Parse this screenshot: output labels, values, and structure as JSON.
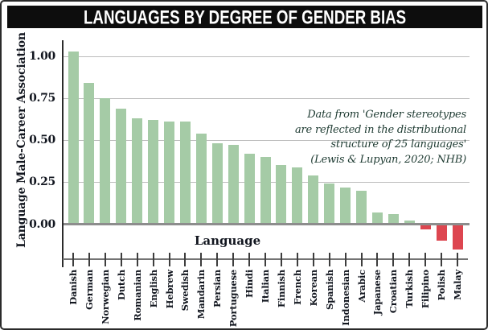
{
  "title": "LANGUAGES BY DEGREE OF GENDER BIAS",
  "annotation": {
    "lines": [
      "Data from 'Gender stereotypes",
      "are reflected in the distributional",
      "structure of 25 languages'",
      "(Lewis & Lupyan, 2020; NHB)"
    ]
  },
  "chart_data": {
    "type": "bar",
    "title": "LANGUAGES BY DEGREE OF GENDER BIAS",
    "xlabel": "Language",
    "ylabel": "Language Male-Career Association",
    "categories": [
      "Danish",
      "German",
      "Norwegian",
      "Dutch",
      "Romanian",
      "English",
      "Hebrew",
      "Swedish",
      "Mandarin",
      "Persian",
      "Portuguese",
      "Hindi",
      "Italian",
      "Finnish",
      "French",
      "Korean",
      "Spanish",
      "Indonesian",
      "Arabic",
      "Japanese",
      "Croatian",
      "Turkish",
      "Filipino",
      "Polish",
      "Malay"
    ],
    "values": [
      1.03,
      0.84,
      0.75,
      0.69,
      0.63,
      0.62,
      0.61,
      0.61,
      0.54,
      0.48,
      0.47,
      0.42,
      0.4,
      0.35,
      0.34,
      0.29,
      0.24,
      0.22,
      0.2,
      0.07,
      0.06,
      0.02,
      -0.03,
      -0.1,
      -0.15
    ],
    "yticks": [
      0.0,
      0.25,
      0.5,
      0.75,
      1.0
    ],
    "ytick_labels": [
      "0.00",
      "0.25",
      "0.50",
      "0.75",
      "1.00"
    ],
    "ylim": [
      -0.2,
      1.08
    ],
    "grid": true,
    "legend": null,
    "positive_color": "#a5cba6",
    "negative_color": "#dd4650"
  },
  "colors": {
    "banner_bg": "#0d0d0d",
    "banner_text": "#ffffff",
    "gridline": "#bcbcbc",
    "zero_line": "#8d8d8d",
    "axis_line": "#2b2b2b",
    "text": "#12161f",
    "annotation_text": "#1d3a31"
  }
}
